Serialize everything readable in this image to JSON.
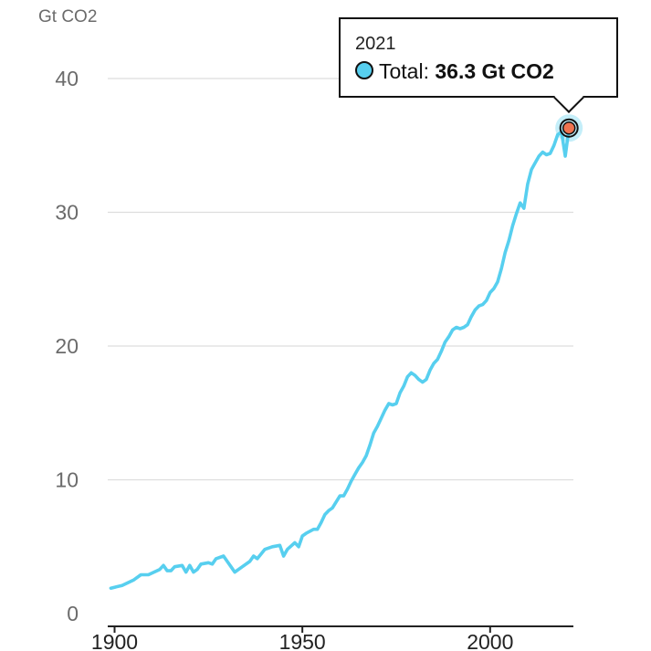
{
  "colors": {
    "line": "#57cfef",
    "marker": "#f0734f",
    "grid": "#dddddd",
    "axis": "#222222",
    "text": "#6b6b6b"
  },
  "unit_label": "Gt CO2",
  "tooltip": {
    "year": "2021",
    "series_label": "Total:",
    "value_text": "36.3 Gt CO2",
    "dot_color": "#57cfef"
  },
  "chart_data": {
    "type": "line",
    "title": "",
    "xlabel": "",
    "ylabel": "Gt CO2",
    "xlim": [
      1899,
      2021
    ],
    "ylim": [
      0,
      40
    ],
    "x_ticks": [
      1900,
      1950,
      2000
    ],
    "y_ticks": [
      0,
      10,
      20,
      30,
      40
    ],
    "grid": true,
    "highlight": {
      "x": 2021,
      "y": 36.3
    },
    "series": [
      {
        "name": "Total",
        "points": [
          [
            1899,
            1.9
          ],
          [
            1902,
            2.1
          ],
          [
            1905,
            2.5
          ],
          [
            1907,
            2.9
          ],
          [
            1909,
            2.9
          ],
          [
            1912,
            3.3
          ],
          [
            1913,
            3.6
          ],
          [
            1914,
            3.2
          ],
          [
            1915,
            3.2
          ],
          [
            1916,
            3.5
          ],
          [
            1918,
            3.6
          ],
          [
            1919,
            3.1
          ],
          [
            1920,
            3.6
          ],
          [
            1921,
            3.1
          ],
          [
            1922,
            3.3
          ],
          [
            1923,
            3.7
          ],
          [
            1925,
            3.8
          ],
          [
            1926,
            3.7
          ],
          [
            1927,
            4.1
          ],
          [
            1929,
            4.3
          ],
          [
            1930,
            3.9
          ],
          [
            1931,
            3.5
          ],
          [
            1932,
            3.1
          ],
          [
            1934,
            3.5
          ],
          [
            1936,
            3.9
          ],
          [
            1937,
            4.3
          ],
          [
            1938,
            4.1
          ],
          [
            1940,
            4.8
          ],
          [
            1942,
            5.0
          ],
          [
            1944,
            5.1
          ],
          [
            1945,
            4.3
          ],
          [
            1946,
            4.8
          ],
          [
            1948,
            5.3
          ],
          [
            1949,
            5.0
          ],
          [
            1950,
            5.8
          ],
          [
            1951,
            6.0
          ],
          [
            1953,
            6.3
          ],
          [
            1954,
            6.3
          ],
          [
            1955,
            6.8
          ],
          [
            1956,
            7.4
          ],
          [
            1957,
            7.7
          ],
          [
            1958,
            7.9
          ],
          [
            1960,
            8.8
          ],
          [
            1961,
            8.8
          ],
          [
            1962,
            9.3
          ],
          [
            1963,
            9.9
          ],
          [
            1964,
            10.4
          ],
          [
            1965,
            10.9
          ],
          [
            1966,
            11.3
          ],
          [
            1967,
            11.8
          ],
          [
            1968,
            12.6
          ],
          [
            1969,
            13.5
          ],
          [
            1970,
            14.0
          ],
          [
            1971,
            14.6
          ],
          [
            1972,
            15.2
          ],
          [
            1973,
            15.7
          ],
          [
            1974,
            15.6
          ],
          [
            1975,
            15.7
          ],
          [
            1976,
            16.5
          ],
          [
            1977,
            17.0
          ],
          [
            1978,
            17.7
          ],
          [
            1979,
            18.0
          ],
          [
            1980,
            17.8
          ],
          [
            1981,
            17.5
          ],
          [
            1982,
            17.3
          ],
          [
            1983,
            17.5
          ],
          [
            1984,
            18.2
          ],
          [
            1985,
            18.7
          ],
          [
            1986,
            19.0
          ],
          [
            1987,
            19.6
          ],
          [
            1988,
            20.3
          ],
          [
            1989,
            20.7
          ],
          [
            1990,
            21.2
          ],
          [
            1991,
            21.4
          ],
          [
            1992,
            21.3
          ],
          [
            1993,
            21.4
          ],
          [
            1994,
            21.6
          ],
          [
            1995,
            22.2
          ],
          [
            1996,
            22.7
          ],
          [
            1997,
            23.0
          ],
          [
            1998,
            23.1
          ],
          [
            1999,
            23.4
          ],
          [
            2000,
            24.0
          ],
          [
            2001,
            24.3
          ],
          [
            2002,
            24.8
          ],
          [
            2003,
            25.8
          ],
          [
            2004,
            27.0
          ],
          [
            2005,
            27.9
          ],
          [
            2006,
            29.0
          ],
          [
            2007,
            29.9
          ],
          [
            2008,
            30.7
          ],
          [
            2009,
            30.3
          ],
          [
            2010,
            32.1
          ],
          [
            2011,
            33.2
          ],
          [
            2012,
            33.7
          ],
          [
            2013,
            34.2
          ],
          [
            2014,
            34.5
          ],
          [
            2015,
            34.3
          ],
          [
            2016,
            34.4
          ],
          [
            2017,
            35.0
          ],
          [
            2018,
            35.8
          ],
          [
            2019,
            36.0
          ],
          [
            2020,
            34.2
          ],
          [
            2021,
            36.3
          ]
        ]
      }
    ]
  }
}
